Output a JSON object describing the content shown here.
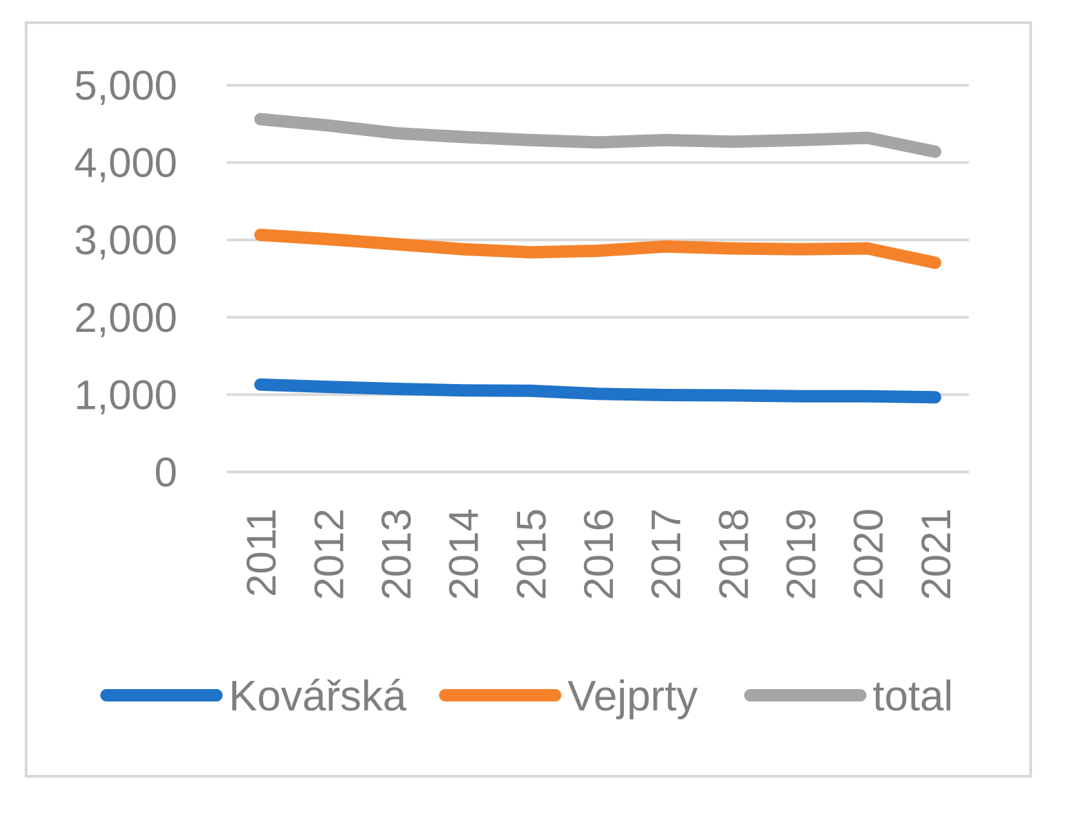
{
  "chart_data": {
    "type": "line",
    "title": "",
    "xlabel": "",
    "ylabel": "",
    "categories": [
      "2011",
      "2012",
      "2013",
      "2014",
      "2015",
      "2016",
      "2017",
      "2018",
      "2019",
      "2020",
      "2021"
    ],
    "ylim": [
      0,
      5000
    ],
    "y_ticks": [
      0,
      1000,
      2000,
      3000,
      4000,
      5000
    ],
    "y_tick_labels": [
      "0",
      "1,000",
      "2,000",
      "3,000",
      "4,000",
      "5,000"
    ],
    "grid": true,
    "legend_position": "bottom",
    "series": [
      {
        "name": "Kovářská",
        "color": "#1f73c9",
        "values": [
          1130,
          1100,
          1075,
          1055,
          1050,
          1010,
          995,
          990,
          980,
          980,
          965
        ]
      },
      {
        "name": "Vejprty",
        "color": "#f5822a",
        "values": [
          3065,
          3010,
          2945,
          2880,
          2840,
          2860,
          2915,
          2890,
          2880,
          2890,
          2705
        ]
      },
      {
        "name": "total",
        "color": "#a5a5a5",
        "values": [
          4560,
          4480,
          4380,
          4330,
          4290,
          4260,
          4290,
          4270,
          4290,
          4320,
          4140
        ]
      }
    ]
  }
}
